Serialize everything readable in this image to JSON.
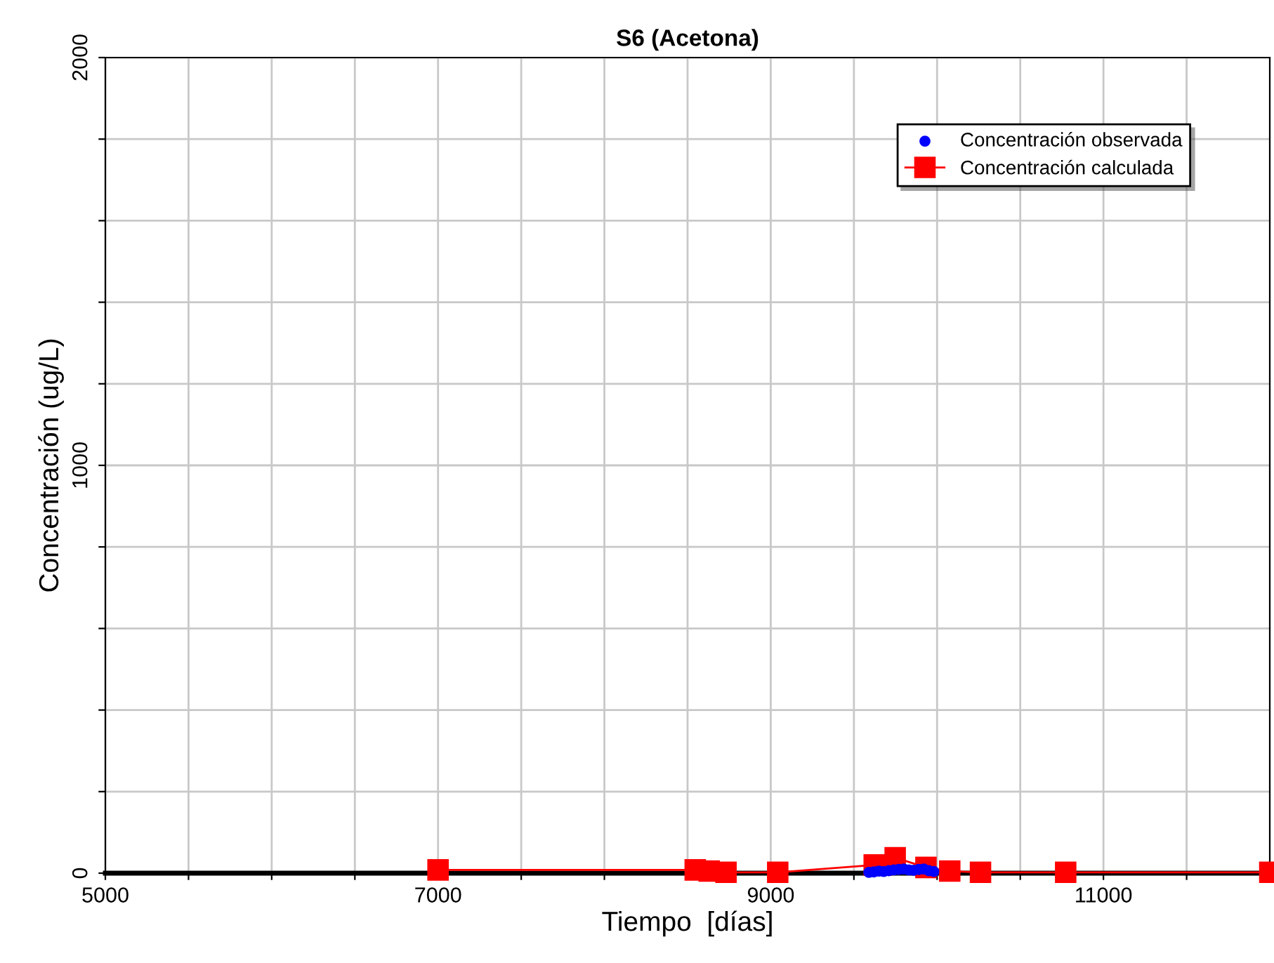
{
  "chart_data": {
    "type": "line",
    "title": "S6 (Acetona)",
    "xlabel": "Tiempo  [días]",
    "ylabel": "Concentración (ug/L)",
    "xlim": [
      5000,
      12000
    ],
    "ylim": [
      0,
      2000
    ],
    "xticks": [
      5000,
      {
        "value": 5500,
        "label": null
      },
      {
        "value": 6000,
        "label": null
      },
      {
        "value": 6500,
        "label": null
      },
      7000,
      {
        "value": 7500,
        "label": null
      },
      {
        "value": 8000,
        "label": null
      },
      {
        "value": 8500,
        "label": null
      },
      9000,
      {
        "value": 9500,
        "label": null
      },
      {
        "value": 10000,
        "label": null
      },
      {
        "value": 10500,
        "label": null
      },
      11000,
      {
        "value": 11500,
        "label": null
      }
    ],
    "yticks": [
      0,
      {
        "value": 200,
        "label": null
      },
      {
        "value": 400,
        "label": null
      },
      {
        "value": 600,
        "label": null
      },
      {
        "value": 800,
        "label": null
      },
      1000,
      {
        "value": 1200,
        "label": null
      },
      {
        "value": 1400,
        "label": null
      },
      {
        "value": 1600,
        "label": null
      },
      {
        "value": 1800,
        "label": null
      },
      2000
    ],
    "grid": true,
    "legend": "top right",
    "series": [
      {
        "name": "Concentración observada",
        "type": "scatter",
        "marker": "circle",
        "color": "#0000ff",
        "x": [
          9590,
          9620,
          9650,
          9680,
          9710,
          9740,
          9770,
          9800,
          9830,
          9860,
          9890,
          9920,
          9950,
          9980
        ],
        "values": [
          2,
          3,
          5,
          4,
          6,
          8,
          9,
          10,
          8,
          7,
          9,
          10,
          6,
          4
        ]
      },
      {
        "name": "Concentración calculada",
        "marker": "square",
        "color": "#ff0000",
        "x": [
          7000,
          8546,
          8630,
          8731,
          9042,
          9622,
          9664,
          9748,
          9933,
          10076,
          10261,
          10773,
          12000
        ],
        "values": [
          8,
          8,
          5,
          2,
          2,
          20,
          20,
          38,
          14,
          5,
          2,
          2,
          2
        ]
      }
    ]
  }
}
